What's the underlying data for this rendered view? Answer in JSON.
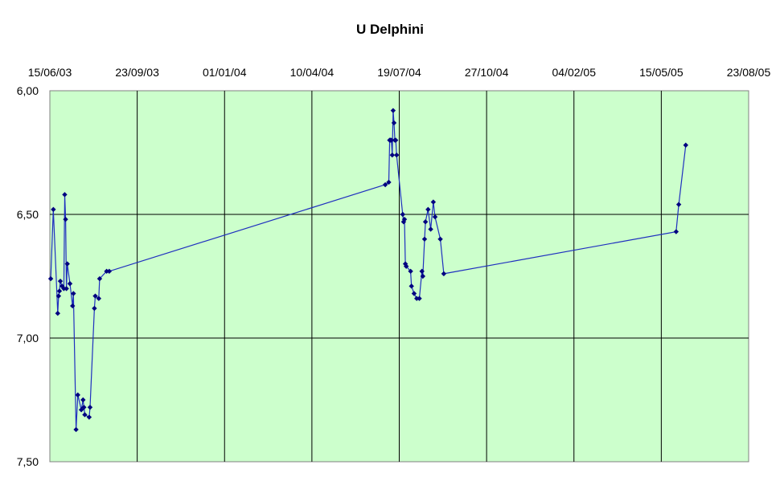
{
  "chart_data": {
    "type": "line",
    "title": "U Delphini",
    "xlabel": "",
    "ylabel": "",
    "x_axis_position": "top",
    "y_axis_reversed": true,
    "ylim": [
      7.5,
      6.0
    ],
    "xlim": [
      "15/06/03",
      "23/08/05"
    ],
    "x_tick_labels": [
      "15/06/03",
      "23/09/03",
      "01/01/04",
      "10/04/04",
      "19/07/04",
      "27/10/04",
      "04/02/05",
      "15/05/05",
      "23/08/05"
    ],
    "y_tick_labels": [
      "6,00",
      "6,50",
      "7,00",
      "7,50"
    ],
    "grid": true,
    "legend": "none",
    "colors": {
      "plot_background": "#ccffcc",
      "series_line": "#1f2fbf",
      "marker": "#000080",
      "grid": "#000000"
    },
    "series": [
      {
        "values": [
          [
            "16/06/03",
            6.76
          ],
          [
            "19/06/03",
            6.48
          ],
          [
            "24/06/03",
            6.9
          ],
          [
            "25/06/03",
            6.83
          ],
          [
            "26/06/03",
            6.81
          ],
          [
            "27/06/03",
            6.77
          ],
          [
            "29/06/03",
            6.79
          ],
          [
            "01/07/03",
            6.8
          ],
          [
            "02/07/03",
            6.42
          ],
          [
            "03/07/03",
            6.52
          ],
          [
            "04/07/03",
            6.8
          ],
          [
            "05/07/03",
            6.7
          ],
          [
            "08/07/03",
            6.78
          ],
          [
            "11/07/03",
            6.87
          ],
          [
            "12/07/03",
            6.82
          ],
          [
            "15/07/03",
            7.37
          ],
          [
            "17/07/03",
            7.23
          ],
          [
            "21/07/03",
            7.29
          ],
          [
            "23/07/03",
            7.25
          ],
          [
            "24/07/03",
            7.28
          ],
          [
            "25/07/03",
            7.31
          ],
          [
            "30/07/03",
            7.32
          ],
          [
            "31/07/03",
            7.28
          ],
          [
            "05/08/03",
            6.88
          ],
          [
            "06/08/03",
            6.83
          ],
          [
            "10/08/03",
            6.84
          ],
          [
            "11/08/03",
            6.76
          ],
          [
            "19/08/03",
            6.73
          ],
          [
            "22/08/03",
            6.73
          ],
          [
            "03/07/04",
            6.38
          ],
          [
            "07/07/04",
            6.37
          ],
          [
            "08/07/04",
            6.2
          ],
          [
            "09/07/04",
            6.2
          ],
          [
            "10/07/04",
            6.2
          ],
          [
            "11/07/04",
            6.26
          ],
          [
            "12/07/04",
            6.08
          ],
          [
            "13/07/04",
            6.13
          ],
          [
            "14/07/04",
            6.2
          ],
          [
            "15/07/04",
            6.2
          ],
          [
            "16/07/04",
            6.26
          ],
          [
            "23/07/04",
            6.5
          ],
          [
            "24/07/04",
            6.53
          ],
          [
            "25/07/04",
            6.52
          ],
          [
            "26/07/04",
            6.7
          ],
          [
            "27/07/04",
            6.71
          ],
          [
            "01/08/04",
            6.73
          ],
          [
            "02/08/04",
            6.79
          ],
          [
            "05/08/04",
            6.82
          ],
          [
            "08/08/04",
            6.84
          ],
          [
            "11/08/04",
            6.84
          ],
          [
            "14/08/04",
            6.73
          ],
          [
            "15/08/04",
            6.75
          ],
          [
            "17/08/04",
            6.6
          ],
          [
            "18/08/04",
            6.53
          ],
          [
            "21/08/04",
            6.48
          ],
          [
            "24/08/04",
            6.56
          ],
          [
            "27/08/04",
            6.45
          ],
          [
            "29/08/04",
            6.51
          ],
          [
            "04/09/04",
            6.6
          ],
          [
            "08/09/04",
            6.74
          ],
          [
            "01/06/05",
            6.57
          ],
          [
            "04/06/05",
            6.46
          ],
          [
            "12/06/05",
            6.22
          ]
        ]
      }
    ]
  }
}
